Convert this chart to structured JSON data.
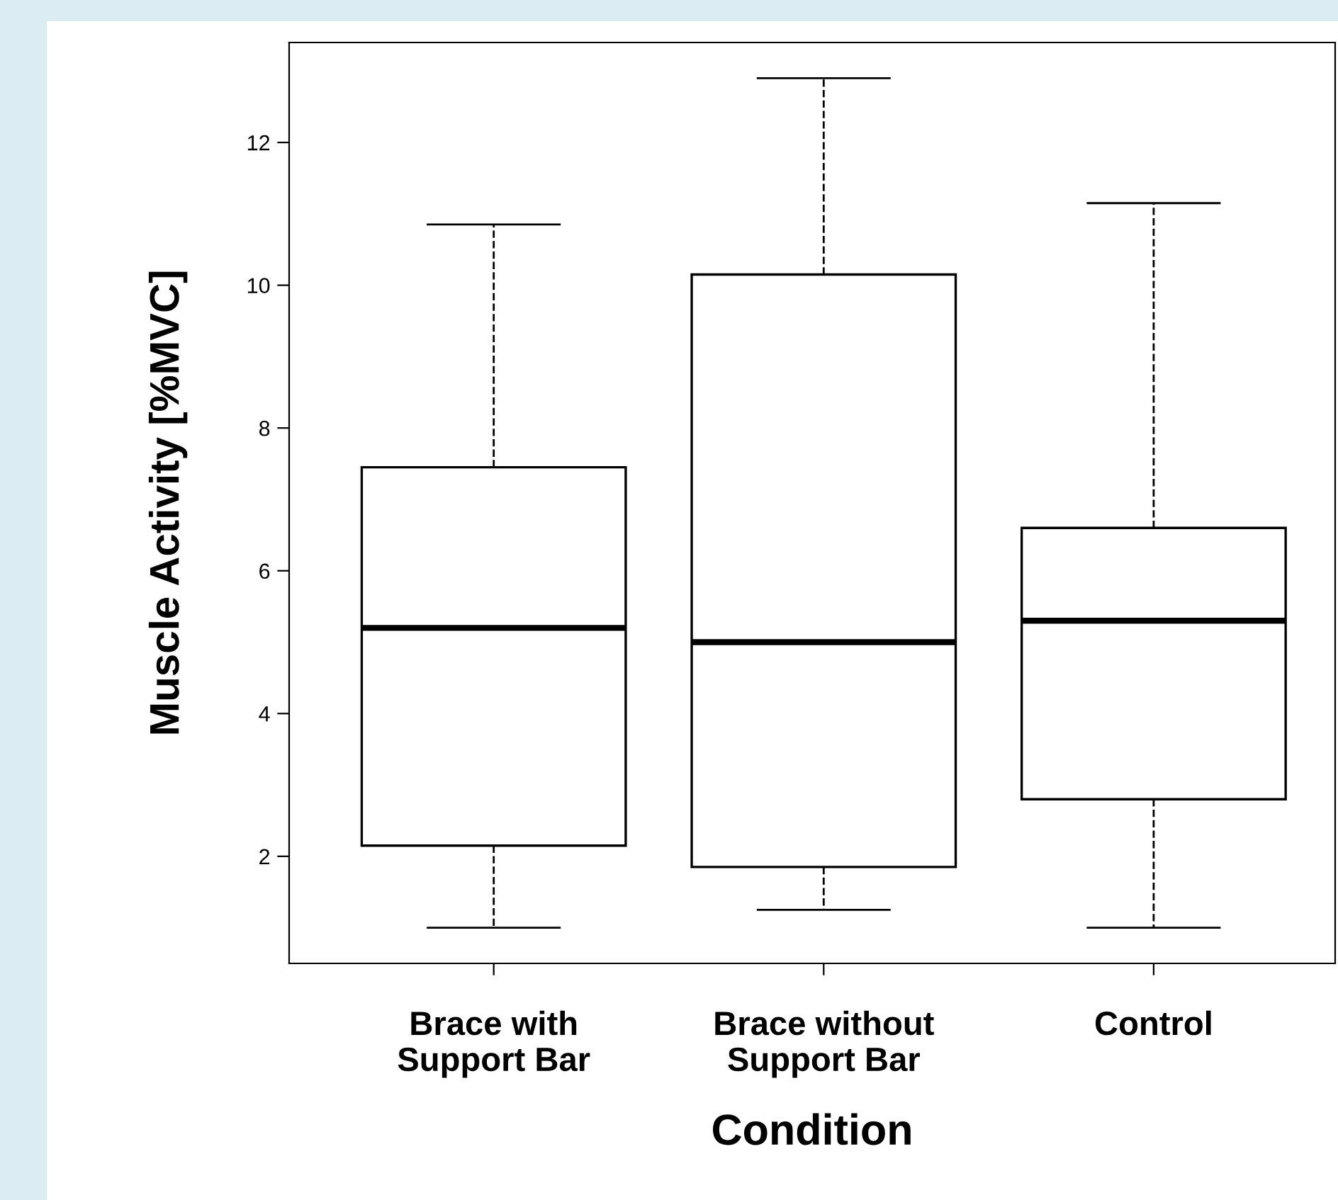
{
  "chart_data": {
    "type": "box",
    "xlabel": "Condition",
    "ylabel": "Muscle Activity [%MVC]",
    "categories": [
      "Brace with\nSupport Bar",
      "Brace without\nSupport Bar",
      "Control"
    ],
    "boxes": [
      {
        "low": 1.0,
        "q1": 2.15,
        "median": 5.2,
        "q3": 7.45,
        "high": 10.85
      },
      {
        "low": 1.25,
        "q1": 1.85,
        "median": 5.0,
        "q3": 10.15,
        "high": 12.9
      },
      {
        "low": 1.0,
        "q1": 2.8,
        "median": 5.3,
        "q3": 6.6,
        "high": 11.15
      }
    ],
    "color": "#ffffff",
    "ylim": [
      0.5,
      13.4
    ],
    "yticks": [
      2,
      4,
      6,
      8,
      10,
      12
    ],
    "grid": false,
    "line_style": "dashed"
  }
}
